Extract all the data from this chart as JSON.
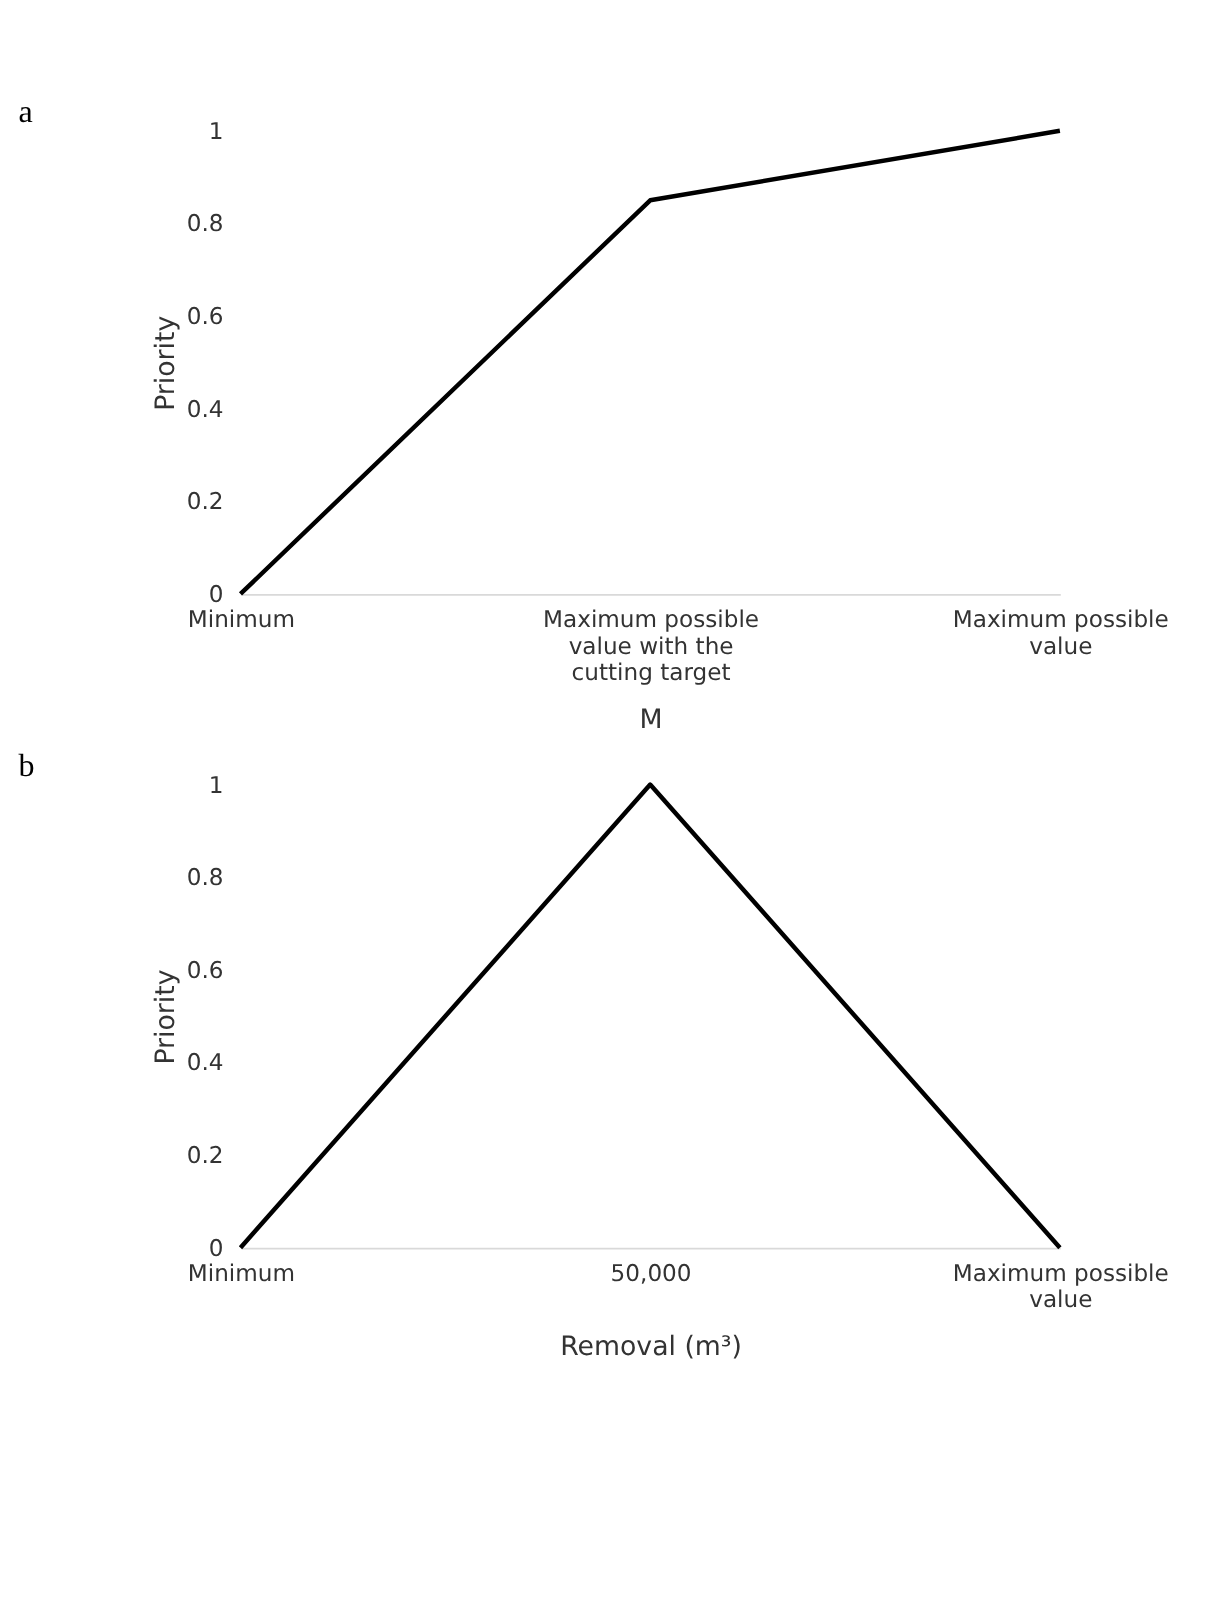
{
  "chart_data": [
    {
      "type": "line",
      "title": "a",
      "xlabel": "M",
      "ylabel": "Priority",
      "categories": [
        "Minimum",
        "Maximum possible value with the cutting target",
        "Maximum possible value"
      ],
      "series": [
        {
          "color": "#000000",
          "values": [
            0,
            0.85,
            1
          ]
        }
      ],
      "ylim": [
        0,
        1
      ],
      "yticks": [
        0,
        0.2,
        0.4,
        0.6,
        0.8,
        1
      ],
      "grid": false,
      "marker": "none",
      "line_style": "solid"
    },
    {
      "type": "line",
      "title": "b",
      "xlabel": "Removal (m³)",
      "ylabel": "Priority",
      "categories": [
        "Minimum",
        "50,000",
        "Maximum possible value"
      ],
      "series": [
        {
          "color": "#000000",
          "values": [
            0,
            1,
            0
          ]
        }
      ],
      "ylim": [
        0,
        1
      ],
      "yticks": [
        0,
        0.2,
        0.4,
        0.6,
        0.8,
        1
      ],
      "grid": false,
      "marker": "none",
      "line_style": "solid"
    }
  ]
}
